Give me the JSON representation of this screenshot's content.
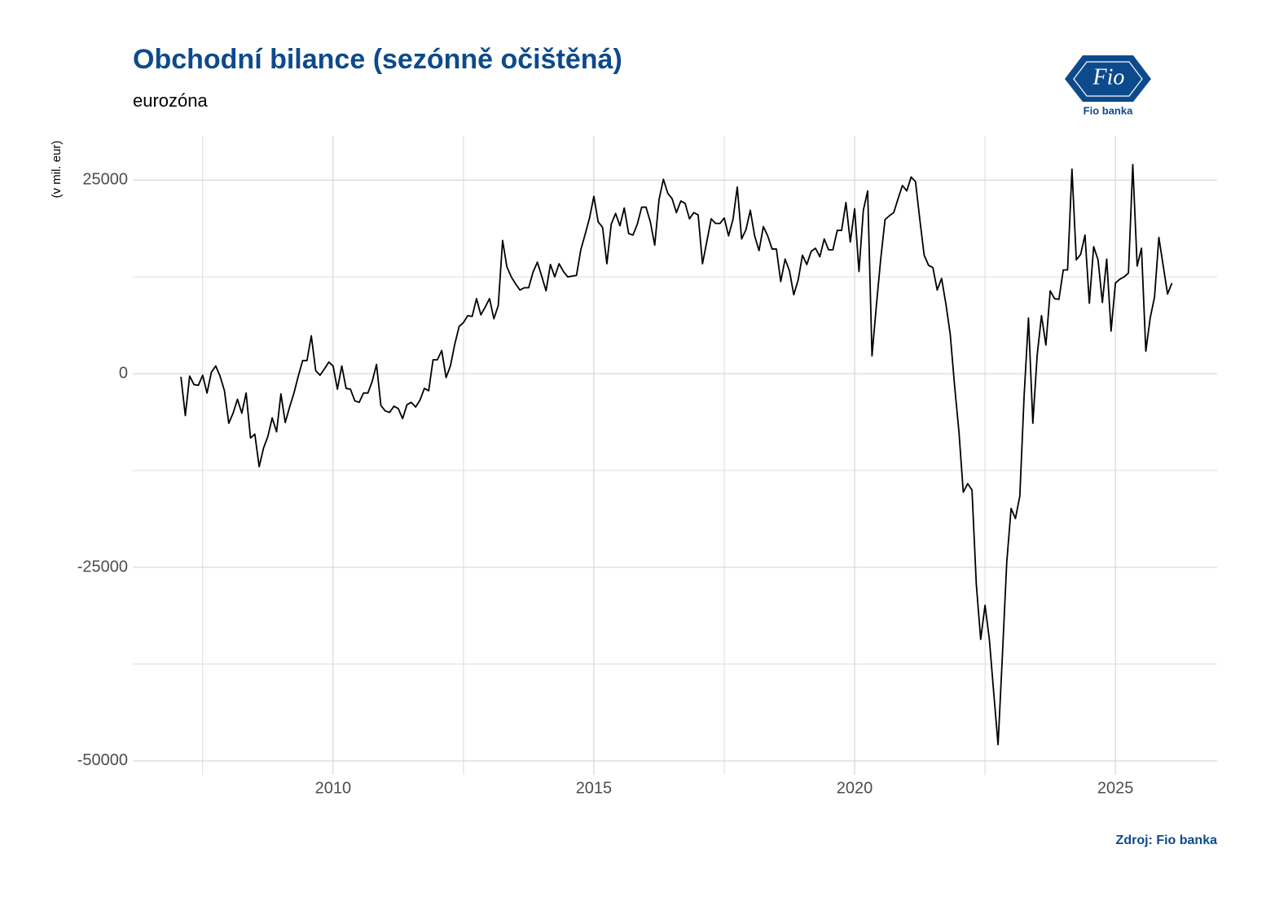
{
  "chart_data": {
    "type": "line",
    "title": "Obchodní bilance (sezónně očištěná)",
    "subtitle": "eurozóna",
    "y_label": "(v mil. eur)",
    "source": "Zdroj: Fio banka",
    "logo": {
      "mark": "Fio",
      "name": "Fio banka"
    },
    "color": "#000000",
    "grid": true,
    "xlim": [
      2006.16,
      2026.95
    ],
    "xticks": [
      2010,
      2015,
      2020,
      2025
    ],
    "x_minor_ticks": [
      2007.5,
      2012.5,
      2017.5,
      2022.5
    ],
    "ylim": [
      -51800,
      30700
    ],
    "yticks": [
      -50000,
      -25000,
      0,
      25000
    ],
    "y_minor_ticks": [
      -37500,
      -12500,
      12500
    ],
    "x": [
      2007.083,
      2007.167,
      2007.25,
      2007.333,
      2007.417,
      2007.5,
      2007.583,
      2007.667,
      2007.75,
      2007.833,
      2007.917,
      2008,
      2008.083,
      2008.167,
      2008.25,
      2008.333,
      2008.417,
      2008.5,
      2008.583,
      2008.667,
      2008.75,
      2008.833,
      2008.917,
      2009,
      2009.083,
      2009.167,
      2009.25,
      2009.333,
      2009.417,
      2009.5,
      2009.583,
      2009.667,
      2009.75,
      2009.833,
      2009.917,
      2010,
      2010.083,
      2010.167,
      2010.25,
      2010.333,
      2010.417,
      2010.5,
      2010.583,
      2010.667,
      2010.75,
      2010.833,
      2010.917,
      2011,
      2011.083,
      2011.167,
      2011.25,
      2011.333,
      2011.417,
      2011.5,
      2011.583,
      2011.667,
      2011.75,
      2011.833,
      2011.917,
      2012,
      2012.083,
      2012.167,
      2012.25,
      2012.333,
      2012.417,
      2012.5,
      2012.583,
      2012.667,
      2012.75,
      2012.833,
      2012.917,
      2013,
      2013.083,
      2013.167,
      2013.25,
      2013.333,
      2013.417,
      2013.5,
      2013.583,
      2013.667,
      2013.75,
      2013.833,
      2013.917,
      2014,
      2014.083,
      2014.167,
      2014.25,
      2014.333,
      2014.417,
      2014.5,
      2014.583,
      2014.667,
      2014.75,
      2014.833,
      2014.917,
      2015,
      2015.083,
      2015.167,
      2015.25,
      2015.333,
      2015.417,
      2015.5,
      2015.583,
      2015.667,
      2015.75,
      2015.833,
      2015.917,
      2016,
      2016.083,
      2016.167,
      2016.25,
      2016.333,
      2016.417,
      2016.5,
      2016.583,
      2016.667,
      2016.75,
      2016.833,
      2016.917,
      2017,
      2017.083,
      2017.167,
      2017.25,
      2017.333,
      2017.417,
      2017.5,
      2017.583,
      2017.667,
      2017.75,
      2017.833,
      2017.917,
      2018,
      2018.083,
      2018.167,
      2018.25,
      2018.333,
      2018.417,
      2018.5,
      2018.583,
      2018.667,
      2018.75,
      2018.833,
      2018.917,
      2019,
      2019.083,
      2019.167,
      2019.25,
      2019.333,
      2019.417,
      2019.5,
      2019.583,
      2019.667,
      2019.75,
      2019.833,
      2019.917,
      2020,
      2020.083,
      2020.167,
      2020.25,
      2020.333,
      2020.417,
      2020.5,
      2020.583,
      2020.667,
      2020.75,
      2020.833,
      2020.917,
      2021,
      2021.083,
      2021.167,
      2021.25,
      2021.333,
      2021.417,
      2021.5,
      2021.583,
      2021.667,
      2021.75,
      2021.833,
      2021.917,
      2022,
      2022.083,
      2022.167,
      2022.25,
      2022.333,
      2022.417,
      2022.5,
      2022.583,
      2022.667,
      2022.75,
      2022.833,
      2022.917,
      2023,
      2023.083,
      2023.167,
      2023.25,
      2023.333,
      2023.417,
      2023.5,
      2023.583,
      2023.667,
      2023.75,
      2023.833,
      2023.917,
      2024,
      2024.083,
      2024.167,
      2024.25,
      2024.333,
      2024.417,
      2024.5,
      2024.583,
      2024.667,
      2024.75,
      2024.833,
      2024.917,
      2025,
      2025.083,
      2025.167,
      2025.25,
      2025.333,
      2025.417,
      2025.5,
      2025.583,
      2025.667,
      2025.75,
      2025.833,
      2025.917,
      2026,
      2026.083
    ],
    "values": [
      -400,
      -5400,
      -300,
      -1400,
      -1500,
      -200,
      -2500,
      200,
      1000,
      -300,
      -2200,
      -6400,
      -5100,
      -3300,
      -5100,
      -2500,
      -8300,
      -7800,
      -12000,
      -9600,
      -8100,
      -5700,
      -7500,
      -2600,
      -6300,
      -4300,
      -2500,
      -300,
      1700,
      1700,
      4900,
      400,
      -200,
      600,
      1500,
      1000,
      -2000,
      1000,
      -1900,
      -2000,
      -3500,
      -3700,
      -2500,
      -2500,
      -1000,
      1200,
      -4100,
      -4800,
      -5000,
      -4200,
      -4500,
      -5800,
      -4000,
      -3700,
      -4300,
      -3400,
      -1900,
      -2200,
      1800,
      1800,
      3000,
      -500,
      1000,
      3800,
      6100,
      6600,
      7500,
      7400,
      9700,
      7600,
      8600,
      9700,
      7100,
      8800,
      17200,
      13800,
      12500,
      11600,
      10800,
      11100,
      11100,
      13100,
      14400,
      12600,
      10700,
      14100,
      12500,
      14200,
      13200,
      12500,
      12600,
      12700,
      16000,
      18000,
      20100,
      22900,
      19600,
      18900,
      14200,
      19300,
      20700,
      19100,
      21400,
      18100,
      17900,
      19300,
      21500,
      21500,
      19600,
      16600,
      22500,
      25100,
      23300,
      22600,
      20800,
      22300,
      22000,
      20000,
      20800,
      20500,
      14200,
      17100,
      20000,
      19400,
      19400,
      20100,
      17800,
      19900,
      24100,
      17400,
      18600,
      21100,
      17800,
      15900,
      19000,
      17800,
      16100,
      16100,
      11900,
      14800,
      13300,
      10200,
      12100,
      15300,
      14100,
      15800,
      16200,
      15100,
      17400,
      16000,
      16000,
      18500,
      18500,
      22100,
      17000,
      21300,
      13200,
      21100,
      23600,
      2300,
      8800,
      14800,
      19900,
      20400,
      20800,
      22600,
      24300,
      23600,
      25400,
      24800,
      19900,
      15300,
      14000,
      13700,
      10800,
      12300,
      9000,
      5100,
      -1600,
      -7500,
      -15300,
      -14200,
      -15000,
      -27200,
      -34300,
      -29900,
      -34300,
      -41200,
      -47900,
      -36400,
      -24300,
      -17400,
      -18700,
      -15800,
      -2800,
      7200,
      -6400,
      2400,
      7500,
      3700,
      10700,
      9700,
      9600,
      13400,
      13400,
      26400,
      14700,
      15400,
      17900,
      9100,
      16400,
      14700,
      9200,
      14800,
      5500,
      11700,
      12200,
      12500,
      13000,
      27000,
      13900,
      16200,
      2900,
      7200,
      9900,
      17600,
      13900,
      10300,
      11700
    ]
  }
}
